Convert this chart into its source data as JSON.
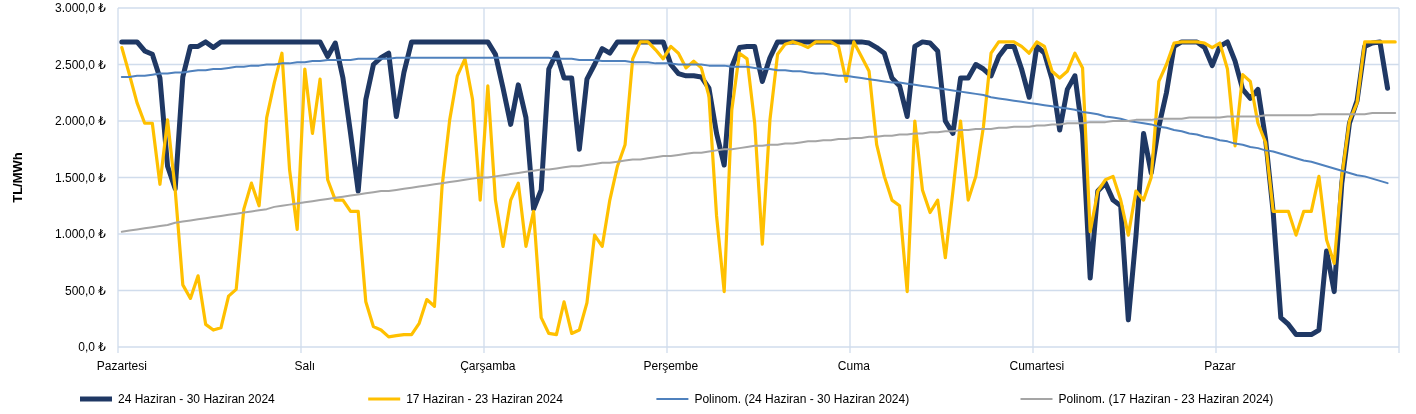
{
  "chart_data": {
    "type": "line",
    "ylabel": "TL/MWh",
    "categories": [
      "Pazartesi",
      null,
      null,
      null,
      null,
      null,
      null,
      null,
      null,
      null,
      null,
      null,
      null,
      null,
      null,
      null,
      null,
      null,
      null,
      null,
      null,
      null,
      null,
      null,
      "Salı",
      null,
      null,
      null,
      null,
      null,
      null,
      null,
      null,
      null,
      null,
      null,
      null,
      null,
      null,
      null,
      null,
      null,
      null,
      null,
      null,
      null,
      null,
      null,
      "Çarşamba",
      null,
      null,
      null,
      null,
      null,
      null,
      null,
      null,
      null,
      null,
      null,
      null,
      null,
      null,
      null,
      null,
      null,
      null,
      null,
      null,
      null,
      null,
      null,
      "Perşembe",
      null,
      null,
      null,
      null,
      null,
      null,
      null,
      null,
      null,
      null,
      null,
      null,
      null,
      null,
      null,
      null,
      null,
      null,
      null,
      null,
      null,
      null,
      null,
      "Cuma",
      null,
      null,
      null,
      null,
      null,
      null,
      null,
      null,
      null,
      null,
      null,
      null,
      null,
      null,
      null,
      null,
      null,
      null,
      null,
      null,
      null,
      null,
      null,
      "Cumartesi",
      null,
      null,
      null,
      null,
      null,
      null,
      null,
      null,
      null,
      null,
      null,
      null,
      null,
      null,
      null,
      null,
      null,
      null,
      null,
      null,
      null,
      null,
      null,
      "Pazar",
      null,
      null,
      null,
      null,
      null,
      null,
      null,
      null,
      null,
      null,
      null,
      null,
      null,
      null,
      null,
      null,
      null,
      null,
      null,
      null,
      null,
      null,
      null
    ],
    "ylim": [
      0,
      3000
    ],
    "yticks": [
      {
        "value": 0,
        "label": "0,0 ₺"
      },
      {
        "value": 500,
        "label": "500,0 ₺"
      },
      {
        "value": 1000,
        "label": "1.000,0 ₺"
      },
      {
        "value": 1500,
        "label": "1.500,0 ₺"
      },
      {
        "value": 2000,
        "label": "2.000,0 ₺"
      },
      {
        "value": 2500,
        "label": "2.500,0 ₺"
      },
      {
        "value": 3000,
        "label": "3.000,0 ₺"
      }
    ],
    "grid": true,
    "legend": "bottom",
    "marker": "none",
    "line_style": "solid",
    "series": [
      {
        "name": "24 Haziran - 30 Haziran 2024",
        "color": "#1f3864",
        "values": [
          2700,
          2700,
          2700,
          2620,
          2590,
          2380,
          1600,
          1400,
          2390,
          2660,
          2660,
          2700,
          2650,
          2700,
          2700,
          2700,
          2700,
          2700,
          2700,
          2700,
          2700,
          2700,
          2700,
          2700,
          2700,
          2700,
          2700,
          2570,
          2690,
          2380,
          1890,
          1380,
          2190,
          2500,
          2560,
          2600,
          2040,
          2430,
          2700,
          2700,
          2700,
          2700,
          2700,
          2700,
          2700,
          2700,
          2700,
          2700,
          2700,
          2590,
          2290,
          1970,
          2320,
          2030,
          1220,
          1390,
          2460,
          2600,
          2380,
          2380,
          1750,
          2370,
          2500,
          2640,
          2600,
          2700,
          2700,
          2700,
          2700,
          2700,
          2700,
          2700,
          2500,
          2420,
          2400,
          2400,
          2390,
          2290,
          1890,
          1610,
          2480,
          2650,
          2660,
          2660,
          2350,
          2560,
          2700,
          2700,
          2700,
          2700,
          2700,
          2700,
          2700,
          2700,
          2700,
          2700,
          2700,
          2700,
          2690,
          2650,
          2600,
          2380,
          2310,
          2040,
          2660,
          2700,
          2690,
          2620,
          2000,
          1890,
          2380,
          2380,
          2500,
          2460,
          2400,
          2570,
          2660,
          2660,
          2460,
          2210,
          2660,
          2600,
          2370,
          1920,
          2280,
          2400,
          1890,
          610,
          1380,
          1450,
          1300,
          1250,
          240,
          980,
          1890,
          1540,
          1950,
          2250,
          2660,
          2700,
          2700,
          2700,
          2650,
          2490,
          2660,
          2700,
          2530,
          2280,
          2200,
          2280,
          1840,
          1190,
          260,
          200,
          110,
          110,
          110,
          150,
          850,
          490,
          1450,
          1980,
          2180,
          2660,
          2690,
          2700,
          2290,
          null
        ]
      },
      {
        "name": "17 Haziran - 23 Haziran 2024",
        "color": "#ffc000",
        "values": [
          2650,
          2410,
          2160,
          1980,
          1980,
          1440,
          2010,
          1390,
          550,
          430,
          630,
          200,
          150,
          170,
          450,
          510,
          1220,
          1450,
          1250,
          2030,
          2340,
          2600,
          1570,
          1040,
          2460,
          1890,
          2370,
          1480,
          1300,
          1300,
          1200,
          1200,
          400,
          180,
          150,
          90,
          100,
          110,
          110,
          210,
          420,
          360,
          1420,
          2010,
          2400,
          2550,
          2190,
          1300,
          2310,
          1300,
          890,
          1300,
          1450,
          890,
          1200,
          260,
          120,
          110,
          400,
          120,
          150,
          390,
          990,
          890,
          1300,
          1600,
          1790,
          2550,
          2700,
          2700,
          2630,
          2550,
          2660,
          2600,
          2470,
          2530,
          2470,
          2220,
          1160,
          490,
          2100,
          2600,
          2550,
          1980,
          910,
          2010,
          2590,
          2680,
          2700,
          2680,
          2650,
          2700,
          2700,
          2700,
          2660,
          2350,
          2700,
          2570,
          2440,
          1790,
          1510,
          1300,
          1250,
          490,
          2000,
          1390,
          1190,
          1300,
          790,
          1380,
          2000,
          1300,
          1510,
          1950,
          2600,
          2700,
          2700,
          2700,
          2660,
          2600,
          2700,
          2660,
          2440,
          2380,
          2440,
          2600,
          2470,
          1020,
          1380,
          1480,
          1510,
          1300,
          990,
          1380,
          1300,
          1500,
          2350,
          2500,
          2690,
          2700,
          2700,
          2700,
          2690,
          2650,
          2690,
          2460,
          1780,
          2410,
          2350,
          1980,
          1810,
          1200,
          1200,
          1200,
          990,
          1200,
          1200,
          1510,
          950,
          740,
          1510,
          2000,
          2160,
          2700,
          2700,
          2700,
          2700,
          2700
        ]
      },
      {
        "name": "Polinom. (24 Haziran - 30 Haziran 2024)",
        "color": "#4f81bd",
        "values": [
          2390,
          2390,
          2400,
          2400,
          2410,
          2420,
          2420,
          2430,
          2430,
          2440,
          2450,
          2450,
          2460,
          2460,
          2470,
          2480,
          2480,
          2490,
          2490,
          2500,
          2500,
          2510,
          2510,
          2520,
          2520,
          2530,
          2530,
          2540,
          2540,
          2540,
          2540,
          2550,
          2550,
          2550,
          2550,
          2550,
          2560,
          2560,
          2560,
          2560,
          2560,
          2560,
          2560,
          2560,
          2560,
          2560,
          2560,
          2560,
          2560,
          2560,
          2560,
          2560,
          2560,
          2560,
          2560,
          2560,
          2560,
          2550,
          2550,
          2550,
          2540,
          2540,
          2540,
          2530,
          2530,
          2530,
          2530,
          2520,
          2520,
          2520,
          2510,
          2510,
          2510,
          2500,
          2500,
          2500,
          2500,
          2490,
          2490,
          2490,
          2480,
          2480,
          2480,
          2470,
          2460,
          2460,
          2450,
          2450,
          2440,
          2440,
          2430,
          2420,
          2420,
          2410,
          2400,
          2400,
          2390,
          2380,
          2370,
          2360,
          2350,
          2340,
          2340,
          2330,
          2320,
          2310,
          2300,
          2290,
          2280,
          2270,
          2260,
          2250,
          2240,
          2230,
          2210,
          2200,
          2190,
          2180,
          2170,
          2160,
          2150,
          2140,
          2130,
          2120,
          2110,
          2100,
          2080,
          2070,
          2060,
          2040,
          2030,
          2020,
          2000,
          1990,
          1980,
          1970,
          1950,
          1940,
          1920,
          1910,
          1890,
          1880,
          1860,
          1850,
          1830,
          1820,
          1800,
          1790,
          1770,
          1760,
          1740,
          1730,
          1710,
          1690,
          1670,
          1650,
          1640,
          1620,
          1600,
          1580,
          1560,
          1540,
          1520,
          1510,
          1490,
          1470,
          1450,
          null
        ]
      },
      {
        "name": "Polinom. (17 Haziran - 23 Haziran 2024)",
        "color": "#a5a5a5",
        "values": [
          1020,
          1030,
          1040,
          1050,
          1060,
          1070,
          1080,
          1100,
          1110,
          1120,
          1130,
          1140,
          1150,
          1160,
          1170,
          1180,
          1190,
          1200,
          1210,
          1220,
          1240,
          1250,
          1260,
          1270,
          1280,
          1290,
          1300,
          1310,
          1320,
          1330,
          1340,
          1350,
          1360,
          1370,
          1380,
          1380,
          1390,
          1400,
          1410,
          1420,
          1430,
          1440,
          1450,
          1460,
          1470,
          1480,
          1490,
          1500,
          1500,
          1510,
          1520,
          1530,
          1540,
          1550,
          1560,
          1570,
          1570,
          1580,
          1590,
          1600,
          1600,
          1610,
          1620,
          1630,
          1630,
          1640,
          1650,
          1660,
          1660,
          1670,
          1680,
          1690,
          1690,
          1700,
          1710,
          1720,
          1720,
          1730,
          1740,
          1750,
          1750,
          1760,
          1770,
          1780,
          1780,
          1790,
          1790,
          1800,
          1800,
          1810,
          1820,
          1820,
          1830,
          1830,
          1840,
          1840,
          1850,
          1850,
          1860,
          1860,
          1870,
          1870,
          1880,
          1880,
          1890,
          1890,
          1900,
          1900,
          1910,
          1910,
          1920,
          1920,
          1930,
          1930,
          1930,
          1940,
          1940,
          1950,
          1950,
          1950,
          1960,
          1960,
          1970,
          1970,
          1980,
          1980,
          1980,
          1990,
          1990,
          1990,
          2000,
          2000,
          2000,
          2010,
          2010,
          2010,
          2020,
          2020,
          2020,
          2020,
          2030,
          2030,
          2030,
          2030,
          2030,
          2040,
          2040,
          2040,
          2040,
          2040,
          2050,
          2050,
          2050,
          2050,
          2050,
          2050,
          2050,
          2060,
          2060,
          2060,
          2060,
          2060,
          2060,
          2060,
          2070,
          2070,
          2070,
          2070
        ]
      }
    ]
  }
}
